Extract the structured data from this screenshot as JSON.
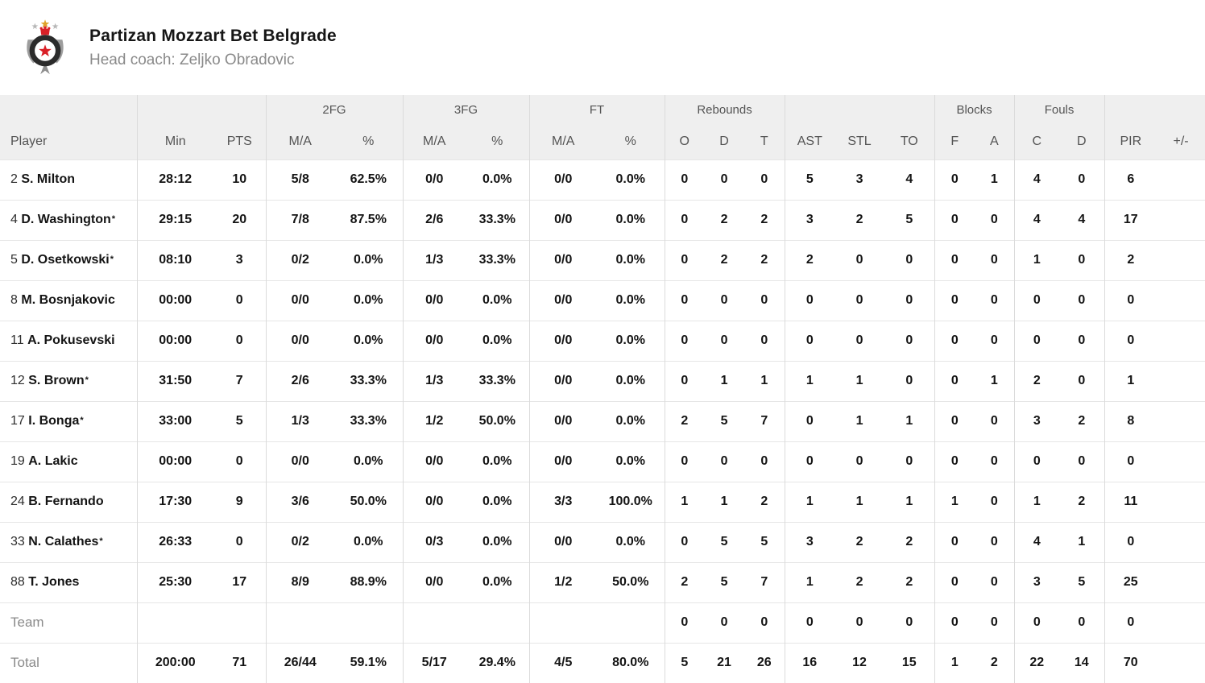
{
  "team_header": {
    "name": "Partizan Mozzart Bet Belgrade",
    "coach": "Head coach: Zeljko Obradovic",
    "logo": "partizan-crest",
    "logo_colors": {
      "red": "#d92027",
      "gold": "#dfa32b",
      "gray": "#9d9d9d",
      "ring": "#2b2b2b"
    }
  },
  "table": {
    "groups": {
      "fg2": "2FG",
      "fg3": "3FG",
      "ft": "FT",
      "rebounds": "Rebounds",
      "blocks": "Blocks",
      "fouls": "Fouls"
    },
    "columns": [
      "Player",
      "Min",
      "PTS",
      "M/A",
      "%",
      "M/A",
      "%",
      "M/A",
      "%",
      "O",
      "D",
      "T",
      "AST",
      "STL",
      "TO",
      "F",
      "A",
      "C",
      "D",
      "PIR",
      "+/-"
    ],
    "players": [
      {
        "number": "2",
        "name": "S. Milton",
        "starter_mark": "",
        "min": "28:12",
        "pts": "10",
        "fg2_ma": "5/8",
        "fg2_pct": "62.5%",
        "fg3_ma": "0/0",
        "fg3_pct": "0.0%",
        "ft_ma": "0/0",
        "ft_pct": "0.0%",
        "reb_o": "0",
        "reb_d": "0",
        "reb_t": "0",
        "ast": "5",
        "stl": "3",
        "to": "4",
        "blk_f": "0",
        "blk_a": "1",
        "foul_c": "4",
        "foul_d": "0",
        "pir": "6",
        "plus_minus": ""
      },
      {
        "number": "4",
        "name": "D. Washington",
        "starter_mark": "*",
        "min": "29:15",
        "pts": "20",
        "fg2_ma": "7/8",
        "fg2_pct": "87.5%",
        "fg3_ma": "2/6",
        "fg3_pct": "33.3%",
        "ft_ma": "0/0",
        "ft_pct": "0.0%",
        "reb_o": "0",
        "reb_d": "2",
        "reb_t": "2",
        "ast": "3",
        "stl": "2",
        "to": "5",
        "blk_f": "0",
        "blk_a": "0",
        "foul_c": "4",
        "foul_d": "4",
        "pir": "17",
        "plus_minus": ""
      },
      {
        "number": "5",
        "name": "D. Osetkowski",
        "starter_mark": "*",
        "min": "08:10",
        "pts": "3",
        "fg2_ma": "0/2",
        "fg2_pct": "0.0%",
        "fg3_ma": "1/3",
        "fg3_pct": "33.3%",
        "ft_ma": "0/0",
        "ft_pct": "0.0%",
        "reb_o": "0",
        "reb_d": "2",
        "reb_t": "2",
        "ast": "2",
        "stl": "0",
        "to": "0",
        "blk_f": "0",
        "blk_a": "0",
        "foul_c": "1",
        "foul_d": "0",
        "pir": "2",
        "plus_minus": ""
      },
      {
        "number": "8",
        "name": "M. Bosnjakovic",
        "starter_mark": "",
        "min": "00:00",
        "pts": "0",
        "fg2_ma": "0/0",
        "fg2_pct": "0.0%",
        "fg3_ma": "0/0",
        "fg3_pct": "0.0%",
        "ft_ma": "0/0",
        "ft_pct": "0.0%",
        "reb_o": "0",
        "reb_d": "0",
        "reb_t": "0",
        "ast": "0",
        "stl": "0",
        "to": "0",
        "blk_f": "0",
        "blk_a": "0",
        "foul_c": "0",
        "foul_d": "0",
        "pir": "0",
        "plus_minus": ""
      },
      {
        "number": "11",
        "name": "A. Pokusevski",
        "starter_mark": "",
        "min": "00:00",
        "pts": "0",
        "fg2_ma": "0/0",
        "fg2_pct": "0.0%",
        "fg3_ma": "0/0",
        "fg3_pct": "0.0%",
        "ft_ma": "0/0",
        "ft_pct": "0.0%",
        "reb_o": "0",
        "reb_d": "0",
        "reb_t": "0",
        "ast": "0",
        "stl": "0",
        "to": "0",
        "blk_f": "0",
        "blk_a": "0",
        "foul_c": "0",
        "foul_d": "0",
        "pir": "0",
        "plus_minus": ""
      },
      {
        "number": "12",
        "name": "S. Brown",
        "starter_mark": "*",
        "min": "31:50",
        "pts": "7",
        "fg2_ma": "2/6",
        "fg2_pct": "33.3%",
        "fg3_ma": "1/3",
        "fg3_pct": "33.3%",
        "ft_ma": "0/0",
        "ft_pct": "0.0%",
        "reb_o": "0",
        "reb_d": "1",
        "reb_t": "1",
        "ast": "1",
        "stl": "1",
        "to": "0",
        "blk_f": "0",
        "blk_a": "1",
        "foul_c": "2",
        "foul_d": "0",
        "pir": "1",
        "plus_minus": ""
      },
      {
        "number": "17",
        "name": "I. Bonga",
        "starter_mark": "*",
        "min": "33:00",
        "pts": "5",
        "fg2_ma": "1/3",
        "fg2_pct": "33.3%",
        "fg3_ma": "1/2",
        "fg3_pct": "50.0%",
        "ft_ma": "0/0",
        "ft_pct": "0.0%",
        "reb_o": "2",
        "reb_d": "5",
        "reb_t": "7",
        "ast": "0",
        "stl": "1",
        "to": "1",
        "blk_f": "0",
        "blk_a": "0",
        "foul_c": "3",
        "foul_d": "2",
        "pir": "8",
        "plus_minus": ""
      },
      {
        "number": "19",
        "name": "A. Lakic",
        "starter_mark": "",
        "min": "00:00",
        "pts": "0",
        "fg2_ma": "0/0",
        "fg2_pct": "0.0%",
        "fg3_ma": "0/0",
        "fg3_pct": "0.0%",
        "ft_ma": "0/0",
        "ft_pct": "0.0%",
        "reb_o": "0",
        "reb_d": "0",
        "reb_t": "0",
        "ast": "0",
        "stl": "0",
        "to": "0",
        "blk_f": "0",
        "blk_a": "0",
        "foul_c": "0",
        "foul_d": "0",
        "pir": "0",
        "plus_minus": ""
      },
      {
        "number": "24",
        "name": "B. Fernando",
        "starter_mark": "",
        "min": "17:30",
        "pts": "9",
        "fg2_ma": "3/6",
        "fg2_pct": "50.0%",
        "fg3_ma": "0/0",
        "fg3_pct": "0.0%",
        "ft_ma": "3/3",
        "ft_pct": "100.0%",
        "reb_o": "1",
        "reb_d": "1",
        "reb_t": "2",
        "ast": "1",
        "stl": "1",
        "to": "1",
        "blk_f": "1",
        "blk_a": "0",
        "foul_c": "1",
        "foul_d": "2",
        "pir": "11",
        "plus_minus": ""
      },
      {
        "number": "33",
        "name": "N. Calathes",
        "starter_mark": "*",
        "min": "26:33",
        "pts": "0",
        "fg2_ma": "0/2",
        "fg2_pct": "0.0%",
        "fg3_ma": "0/3",
        "fg3_pct": "0.0%",
        "ft_ma": "0/0",
        "ft_pct": "0.0%",
        "reb_o": "0",
        "reb_d": "5",
        "reb_t": "5",
        "ast": "3",
        "stl": "2",
        "to": "2",
        "blk_f": "0",
        "blk_a": "0",
        "foul_c": "4",
        "foul_d": "1",
        "pir": "0",
        "plus_minus": ""
      },
      {
        "number": "88",
        "name": "T. Jones",
        "starter_mark": "",
        "min": "25:30",
        "pts": "17",
        "fg2_ma": "8/9",
        "fg2_pct": "88.9%",
        "fg3_ma": "0/0",
        "fg3_pct": "0.0%",
        "ft_ma": "1/2",
        "ft_pct": "50.0%",
        "reb_o": "2",
        "reb_d": "5",
        "reb_t": "7",
        "ast": "1",
        "stl": "2",
        "to": "2",
        "blk_f": "0",
        "blk_a": "0",
        "foul_c": "3",
        "foul_d": "5",
        "pir": "25",
        "plus_minus": ""
      }
    ],
    "team_row": {
      "label": "Team",
      "min": "",
      "pts": "",
      "fg2_ma": "",
      "fg2_pct": "",
      "fg3_ma": "",
      "fg3_pct": "",
      "ft_ma": "",
      "ft_pct": "",
      "reb_o": "0",
      "reb_d": "0",
      "reb_t": "0",
      "ast": "0",
      "stl": "0",
      "to": "0",
      "blk_f": "0",
      "blk_a": "0",
      "foul_c": "0",
      "foul_d": "0",
      "pir": "0",
      "plus_minus": ""
    },
    "total_row": {
      "label": "Total",
      "min": "200:00",
      "pts": "71",
      "fg2_ma": "26/44",
      "fg2_pct": "59.1%",
      "fg3_ma": "5/17",
      "fg3_pct": "29.4%",
      "ft_ma": "4/5",
      "ft_pct": "80.0%",
      "reb_o": "5",
      "reb_d": "21",
      "reb_t": "26",
      "ast": "16",
      "stl": "12",
      "to": "15",
      "blk_f": "1",
      "blk_a": "2",
      "foul_c": "22",
      "foul_d": "14",
      "pir": "70",
      "plus_minus": ""
    },
    "colors": {
      "header_bg": "#efefef",
      "header_text": "#545454",
      "row_border": "#e6e6e6",
      "group_border": "#dbdbdb",
      "text_dark": "#141414",
      "text_gray": "#8a8a8a"
    }
  }
}
